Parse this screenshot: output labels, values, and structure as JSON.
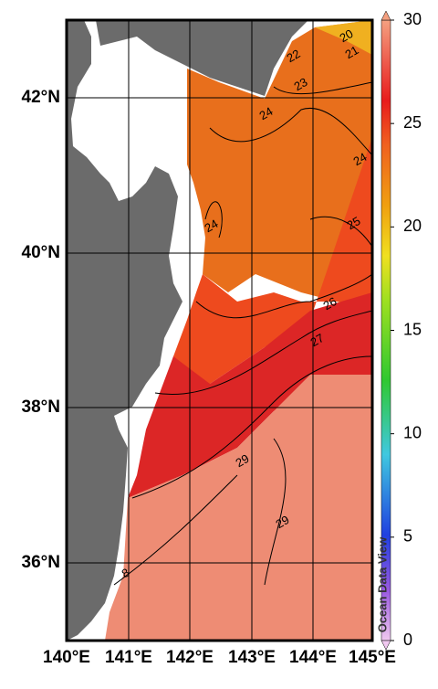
{
  "map": {
    "x_labels": [
      "140°E",
      "141°E",
      "142°E",
      "143°E",
      "144°E",
      "145°E"
    ],
    "y_labels": [
      "42°N",
      "40°N",
      "38°N",
      "36°N"
    ],
    "colorbar_ticks": [
      0,
      5,
      10,
      15,
      20,
      25,
      30
    ],
    "contour_labels": [
      "20",
      "21",
      "22",
      "23",
      "24",
      "24",
      "24",
      "25",
      "26",
      "27",
      "29",
      "29",
      "8"
    ],
    "watermark": "Ocean Data View"
  }
}
